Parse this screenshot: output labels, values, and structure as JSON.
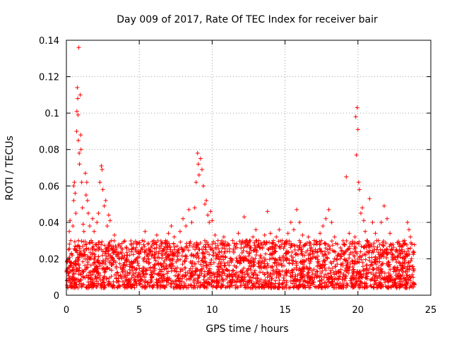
{
  "chart_data": {
    "type": "scatter",
    "title": "Day 009 of 2017, Rate Of TEC Index for receiver bair",
    "xlabel": "GPS time / hours",
    "ylabel": "ROTI / TECUs",
    "xlim": [
      0,
      25
    ],
    "ylim": [
      0,
      0.14
    ],
    "xticks": [
      "0",
      "5",
      "10",
      "15",
      "20",
      "25"
    ],
    "yticks": [
      "0",
      "0.02",
      "0.04",
      "0.06",
      "0.08",
      "0.1",
      "0.12",
      "0.14"
    ],
    "grid": true,
    "marker": "plus",
    "color": "#ff0000",
    "series": [
      {
        "points": [
          [
            0.05,
            0.008
          ],
          [
            0.1,
            0.012
          ],
          [
            0.15,
            0.025
          ],
          [
            0.2,
            0.035
          ],
          [
            0.25,
            0.041
          ],
          [
            0.3,
            0.03
          ],
          [
            0.35,
            0.018
          ],
          [
            0.4,
            0.022
          ],
          [
            0.45,
            0.038
          ],
          [
            0.5,
            0.052
          ],
          [
            0.5,
            0.06
          ],
          [
            0.55,
            0.062
          ],
          [
            0.6,
            0.056
          ],
          [
            0.65,
            0.045
          ],
          [
            0.7,
            0.09
          ],
          [
            0.72,
            0.101
          ],
          [
            0.75,
            0.114
          ],
          [
            0.78,
            0.108
          ],
          [
            0.8,
            0.099
          ],
          [
            0.82,
            0.085
          ],
          [
            0.85,
            0.136
          ],
          [
            0.88,
            0.078
          ],
          [
            0.9,
            0.072
          ],
          [
            0.95,
            0.11
          ],
          [
            0.98,
            0.088
          ],
          [
            1.0,
            0.08
          ],
          [
            1.05,
            0.062
          ],
          [
            1.1,
            0.048
          ],
          [
            1.15,
            0.039
          ],
          [
            1.2,
            0.035
          ],
          [
            1.3,
            0.067
          ],
          [
            1.35,
            0.055
          ],
          [
            1.4,
            0.062
          ],
          [
            1.45,
            0.052
          ],
          [
            1.5,
            0.045
          ],
          [
            1.6,
            0.038
          ],
          [
            1.7,
            0.03
          ],
          [
            1.8,
            0.042
          ],
          [
            1.9,
            0.035
          ],
          [
            2.0,
            0.028
          ],
          [
            2.1,
            0.04
          ],
          [
            2.2,
            0.045
          ],
          [
            2.3,
            0.062
          ],
          [
            2.4,
            0.071
          ],
          [
            2.45,
            0.069
          ],
          [
            2.5,
            0.058
          ],
          [
            2.6,
            0.049
          ],
          [
            2.7,
            0.052
          ],
          [
            2.8,
            0.038
          ],
          [
            2.9,
            0.044
          ],
          [
            3.0,
            0.041
          ],
          [
            3.1,
            0.03
          ],
          [
            3.2,
            0.027
          ],
          [
            3.3,
            0.033
          ],
          [
            3.4,
            0.025
          ],
          [
            3.5,
            0.022
          ],
          [
            3.6,
            0.028
          ],
          [
            3.8,
            0.02
          ],
          [
            4.0,
            0.018
          ],
          [
            4.2,
            0.022
          ],
          [
            4.4,
            0.017
          ],
          [
            4.6,
            0.026
          ],
          [
            4.8,
            0.02
          ],
          [
            5.0,
            0.023
          ],
          [
            5.2,
            0.03
          ],
          [
            5.4,
            0.035
          ],
          [
            5.6,
            0.028
          ],
          [
            5.8,
            0.024
          ],
          [
            6.0,
            0.03
          ],
          [
            6.2,
            0.033
          ],
          [
            6.4,
            0.027
          ],
          [
            6.6,
            0.022
          ],
          [
            6.8,
            0.03
          ],
          [
            7.0,
            0.034
          ],
          [
            7.2,
            0.038
          ],
          [
            7.4,
            0.032
          ],
          [
            7.6,
            0.027
          ],
          [
            7.8,
            0.035
          ],
          [
            8.0,
            0.042
          ],
          [
            8.2,
            0.038
          ],
          [
            8.4,
            0.047
          ],
          [
            8.6,
            0.04
          ],
          [
            8.8,
            0.048
          ],
          [
            8.9,
            0.062
          ],
          [
            9.0,
            0.078
          ],
          [
            9.05,
            0.072
          ],
          [
            9.1,
            0.066
          ],
          [
            9.2,
            0.075
          ],
          [
            9.3,
            0.069
          ],
          [
            9.4,
            0.06
          ],
          [
            9.5,
            0.05
          ],
          [
            9.6,
            0.052
          ],
          [
            9.7,
            0.044
          ],
          [
            9.8,
            0.04
          ],
          [
            9.9,
            0.046
          ],
          [
            10.0,
            0.041
          ],
          [
            10.2,
            0.033
          ],
          [
            10.4,
            0.03
          ],
          [
            10.6,
            0.028
          ],
          [
            10.8,
            0.032
          ],
          [
            11.0,
            0.027
          ],
          [
            11.2,
            0.024
          ],
          [
            11.4,
            0.03
          ],
          [
            11.6,
            0.026
          ],
          [
            11.8,
            0.034
          ],
          [
            12.0,
            0.028
          ],
          [
            12.2,
            0.043
          ],
          [
            12.4,
            0.03
          ],
          [
            12.6,
            0.027
          ],
          [
            12.8,
            0.032
          ],
          [
            13.0,
            0.036
          ],
          [
            13.2,
            0.03
          ],
          [
            13.4,
            0.028
          ],
          [
            13.6,
            0.033
          ],
          [
            13.8,
            0.046
          ],
          [
            14.0,
            0.034
          ],
          [
            14.2,
            0.03
          ],
          [
            14.4,
            0.032
          ],
          [
            14.6,
            0.036
          ],
          [
            14.8,
            0.03
          ],
          [
            15.0,
            0.028
          ],
          [
            15.2,
            0.034
          ],
          [
            15.4,
            0.04
          ],
          [
            15.6,
            0.036
          ],
          [
            15.8,
            0.047
          ],
          [
            16.0,
            0.04
          ],
          [
            16.2,
            0.033
          ],
          [
            16.4,
            0.028
          ],
          [
            16.6,
            0.032
          ],
          [
            16.8,
            0.026
          ],
          [
            17.0,
            0.03
          ],
          [
            17.2,
            0.028
          ],
          [
            17.4,
            0.034
          ],
          [
            17.6,
            0.038
          ],
          [
            17.8,
            0.042
          ],
          [
            18.0,
            0.047
          ],
          [
            18.2,
            0.04
          ],
          [
            18.4,
            0.032
          ],
          [
            18.6,
            0.028
          ],
          [
            18.8,
            0.026
          ],
          [
            19.0,
            0.028
          ],
          [
            19.2,
            0.065
          ],
          [
            19.4,
            0.034
          ],
          [
            19.6,
            0.028
          ],
          [
            19.8,
            0.032
          ],
          [
            19.85,
            0.098
          ],
          [
            19.9,
            0.077
          ],
          [
            19.95,
            0.103
          ],
          [
            20.0,
            0.091
          ],
          [
            20.05,
            0.062
          ],
          [
            20.1,
            0.058
          ],
          [
            20.2,
            0.045
          ],
          [
            20.3,
            0.048
          ],
          [
            20.4,
            0.041
          ],
          [
            20.5,
            0.035
          ],
          [
            20.6,
            0.03
          ],
          [
            20.8,
            0.053
          ],
          [
            21.0,
            0.04
          ],
          [
            21.2,
            0.034
          ],
          [
            21.4,
            0.03
          ],
          [
            21.6,
            0.04
          ],
          [
            21.8,
            0.049
          ],
          [
            22.0,
            0.042
          ],
          [
            22.2,
            0.034
          ],
          [
            22.4,
            0.028
          ],
          [
            22.6,
            0.024
          ],
          [
            22.8,
            0.022
          ],
          [
            23.0,
            0.025
          ],
          [
            23.2,
            0.03
          ],
          [
            23.4,
            0.04
          ],
          [
            23.5,
            0.036
          ],
          [
            23.6,
            0.032
          ],
          [
            23.7,
            0.028
          ],
          [
            23.8,
            0.024
          ]
        ]
      }
    ],
    "background_band": {
      "x_range": [
        0.0,
        23.9
      ],
      "y_min": 0.004,
      "y_max": 0.03
    }
  }
}
